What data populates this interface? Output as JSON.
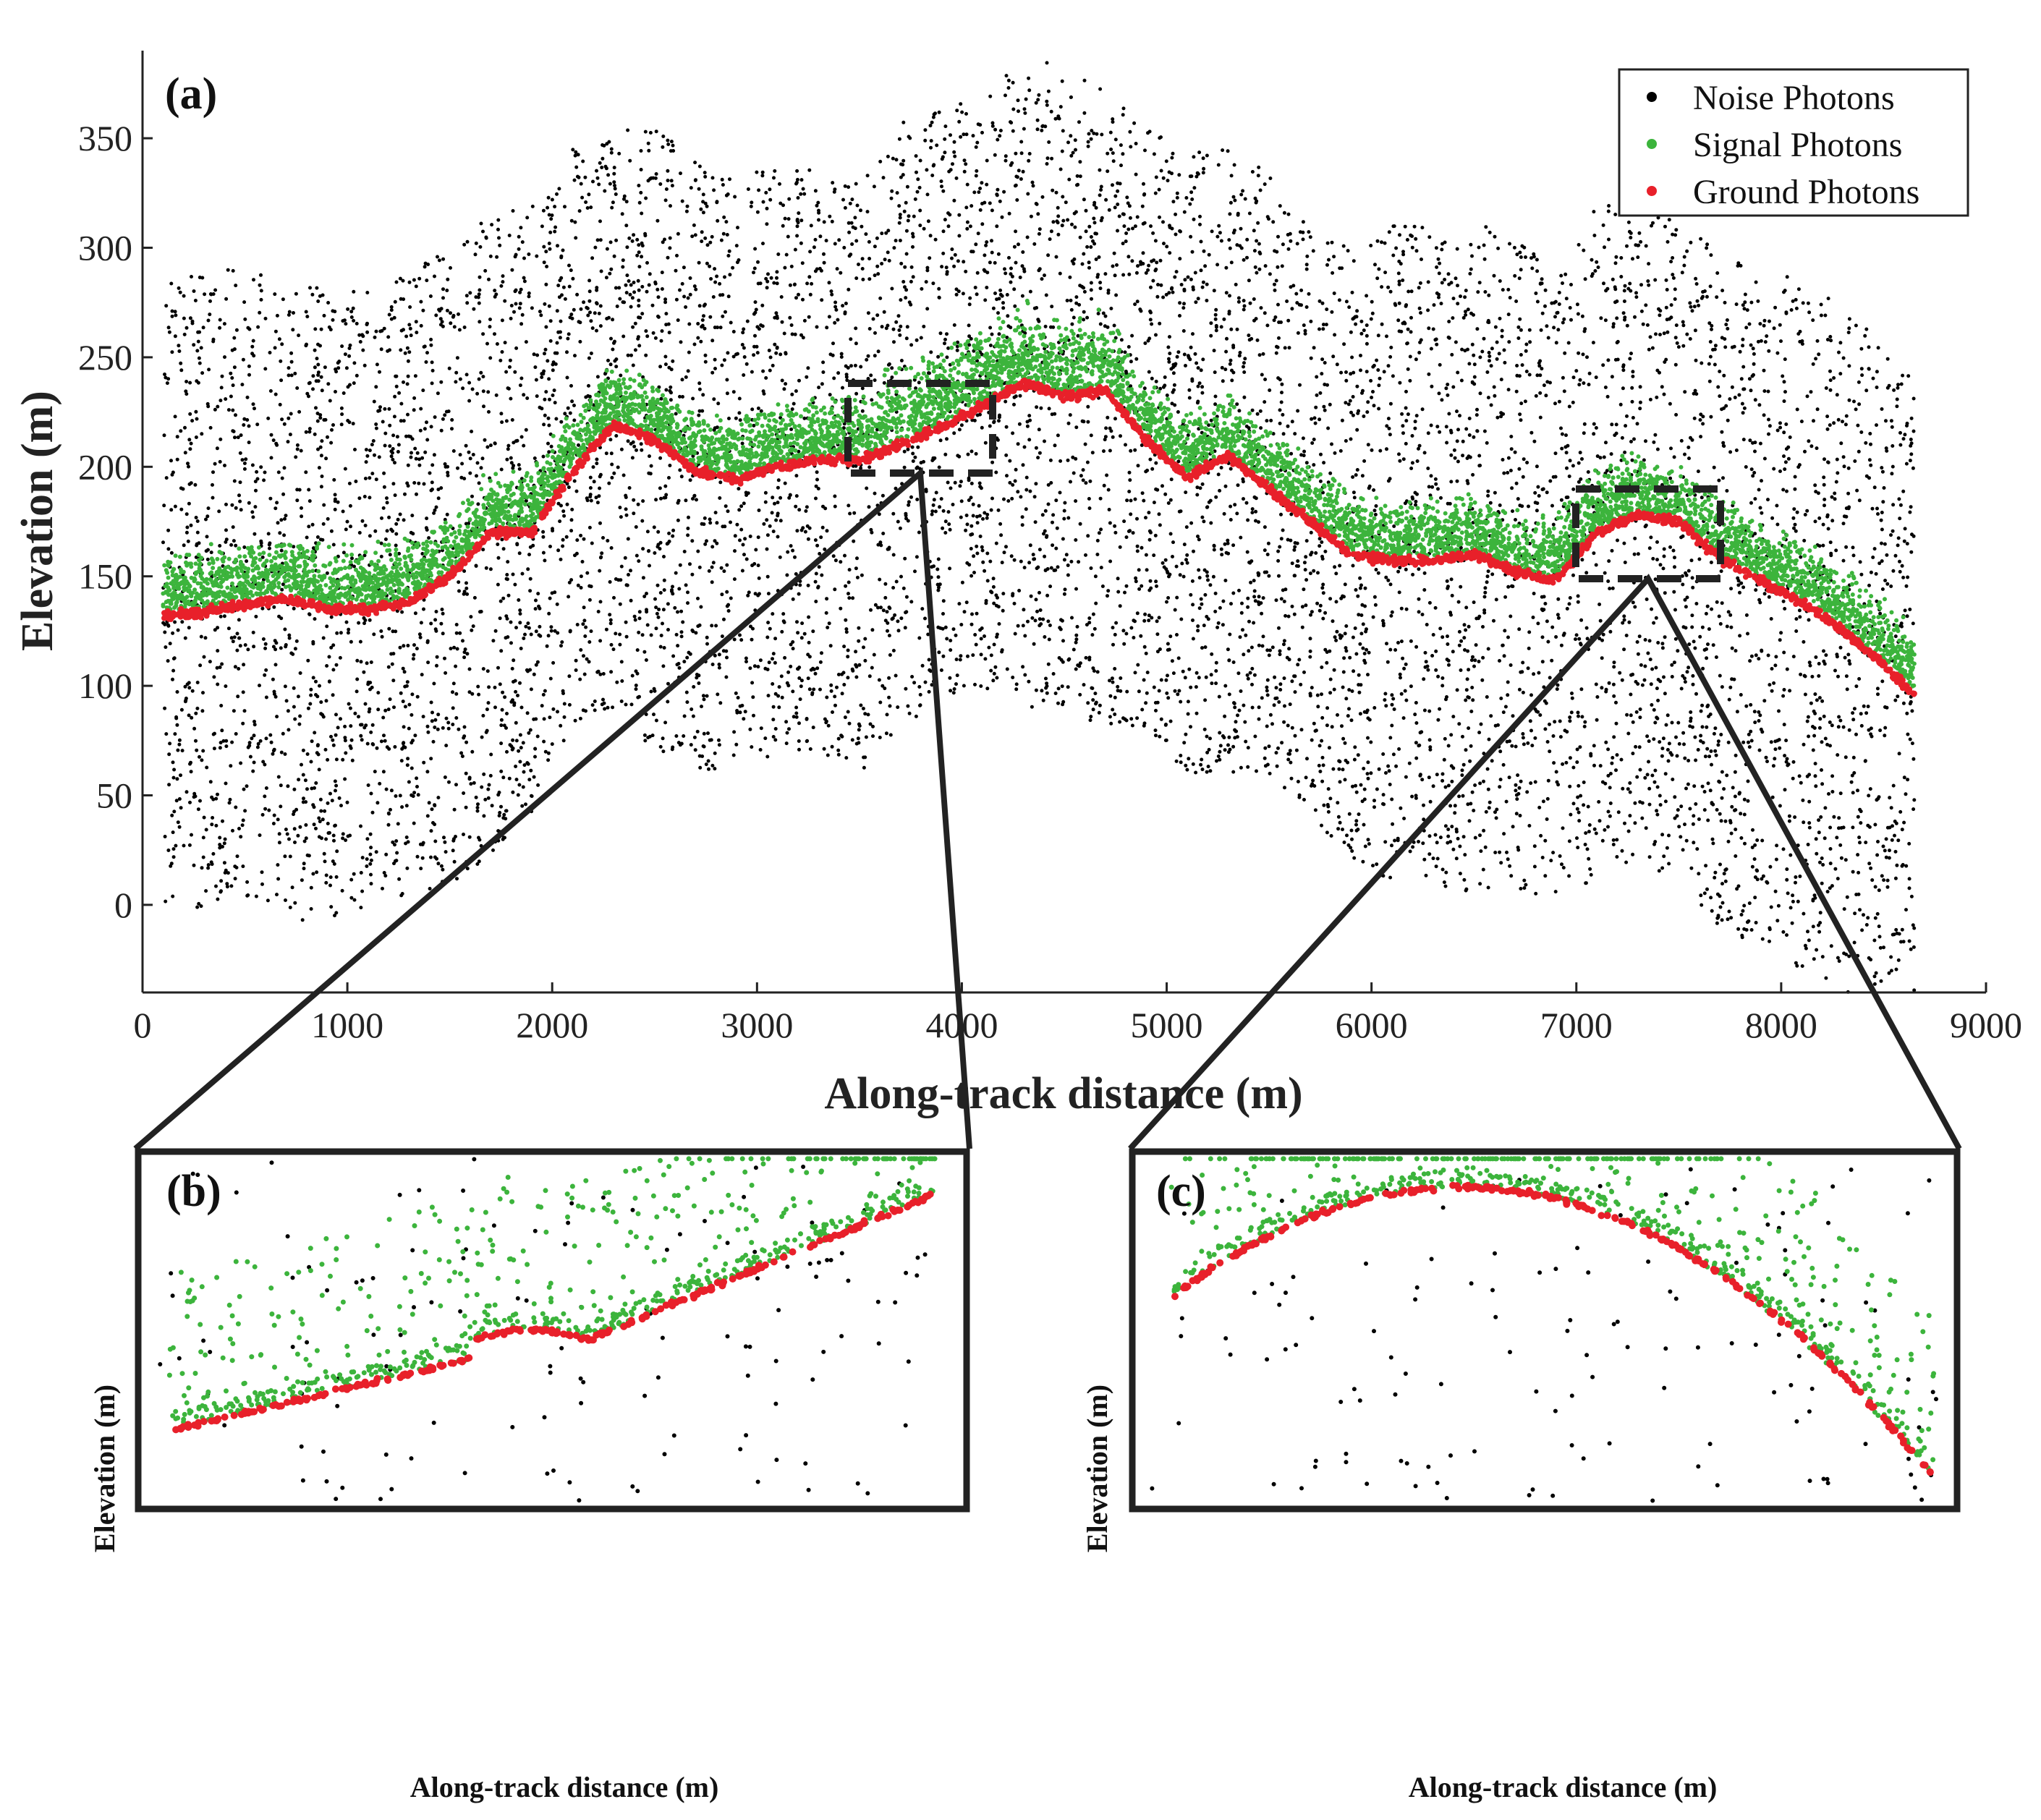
{
  "colors": {
    "noise": "#000000",
    "signal": "#3cb43c",
    "ground": "#e8202a",
    "axis": "#222222",
    "box": "#222222"
  },
  "legend": {
    "noise": "Noise Photons",
    "signal": "Signal Photons",
    "ground": "Ground Photons"
  },
  "chart_data": [
    {
      "panel": "(a)",
      "type": "scatter",
      "xlabel": "Along-track distance (m)",
      "ylabel": "Elevation (m)",
      "xlim": [
        0,
        9000
      ],
      "ylim": [
        -40,
        390
      ],
      "xticks": [
        0,
        1000,
        2000,
        3000,
        4000,
        5000,
        6000,
        7000,
        8000,
        9000
      ],
      "yticks": [
        0,
        50,
        100,
        150,
        200,
        250,
        300,
        350
      ],
      "ground_profile": {
        "x": [
          100,
          300,
          500,
          700,
          900,
          1100,
          1300,
          1500,
          1700,
          1900,
          2100,
          2300,
          2500,
          2700,
          2900,
          3100,
          3300,
          3500,
          3700,
          3900,
          4100,
          4300,
          4500,
          4700,
          4900,
          5100,
          5300,
          5500,
          5700,
          5900,
          6100,
          6300,
          6500,
          6700,
          6900,
          7100,
          7300,
          7500,
          7700,
          7900,
          8100,
          8300,
          8500,
          8650
        ],
        "y": [
          132,
          134,
          137,
          140,
          135,
          135,
          138,
          150,
          170,
          170,
          198,
          219,
          212,
          198,
          194,
          200,
          203,
          203,
          210,
          218,
          228,
          238,
          232,
          235,
          212,
          195,
          205,
          190,
          175,
          160,
          157,
          157,
          160,
          152,
          148,
          170,
          178,
          175,
          158,
          148,
          138,
          125,
          110,
          96
        ]
      },
      "noise_envelope": {
        "x": [
          100,
          300,
          500,
          700,
          900,
          1100,
          1300,
          1500,
          1700,
          1900,
          2100,
          2300,
          2500,
          2700,
          2900,
          3100,
          3300,
          3500,
          3700,
          3900,
          4100,
          4300,
          4500,
          4700,
          4900,
          5100,
          5300,
          5500,
          5700,
          5900,
          6100,
          6300,
          6500,
          6700,
          6900,
          7100,
          7300,
          7500,
          7700,
          7900,
          8100,
          8300,
          8500,
          8650
        ],
        "top": [
          285,
          290,
          292,
          290,
          280,
          280,
          290,
          300,
          315,
          320,
          345,
          355,
          355,
          340,
          330,
          340,
          335,
          330,
          360,
          365,
          370,
          385,
          385,
          375,
          355,
          345,
          345,
          335,
          310,
          300,
          310,
          310,
          310,
          310,
          285,
          320,
          325,
          310,
          300,
          290,
          285,
          275,
          255,
          240
        ],
        "bottom": [
          0,
          -5,
          0,
          -5,
          -10,
          -5,
          0,
          10,
          20,
          40,
          80,
          90,
          70,
          60,
          60,
          70,
          70,
          60,
          80,
          95,
          100,
          90,
          90,
          80,
          80,
          60,
          60,
          60,
          40,
          20,
          10,
          10,
          5,
          5,
          5,
          10,
          20,
          10,
          -10,
          -20,
          -30,
          -40,
          -40,
          -40
        ]
      }
    },
    {
      "panel": "(b)",
      "type": "scatter",
      "xlabel": "Along-track distance (m)",
      "ylabel": "Elevation (m)",
      "zoom_of_a": {
        "x": [
          3500,
          4200
        ],
        "y": [
          197,
          238
        ]
      }
    },
    {
      "panel": "(c)",
      "type": "scatter",
      "xlabel": "Along-track distance (m)",
      "ylabel": "Elevation (m)",
      "zoom_of_a": {
        "x": [
          7050,
          7750
        ],
        "y": [
          150,
          190
        ]
      }
    }
  ]
}
